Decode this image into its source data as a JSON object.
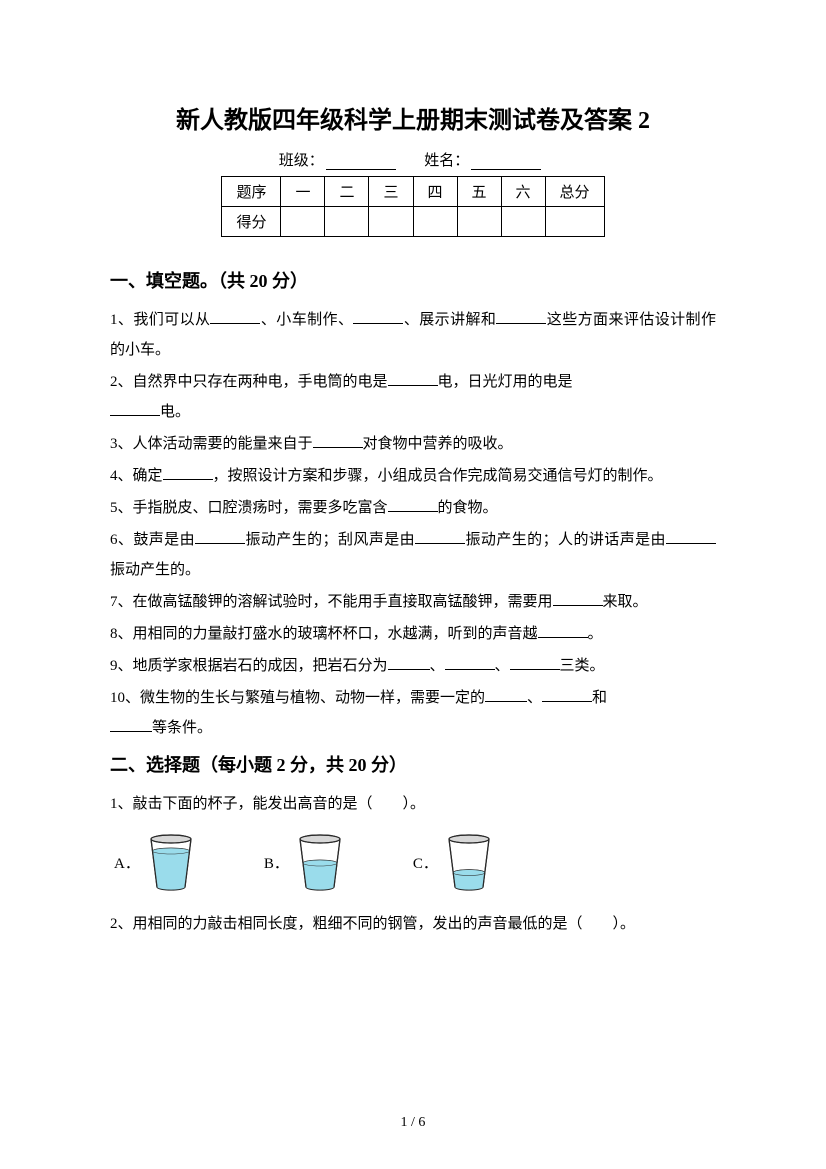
{
  "title": "新人教版四年级科学上册期末测试卷及答案 2",
  "meta": {
    "class_label": "班级：",
    "name_label": "姓名："
  },
  "score_table": {
    "row_labels": [
      "题序",
      "得分"
    ],
    "columns": [
      "一",
      "二",
      "三",
      "四",
      "五",
      "六",
      "总分"
    ]
  },
  "sections": {
    "s1": {
      "heading": "一、填空题。（共 20 分）",
      "items": {
        "q1_a": "1、我们可以从",
        "q1_b": "、小车制作、",
        "q1_c": "、展示讲解和",
        "q1_d": "这些方面来评估设计制作的小车。",
        "q2_a": "2、自然界中只存在两种电，手电筒的电是",
        "q2_b": "电，日光灯用的电是",
        "q2_c": "电。",
        "q3_a": "3、人体活动需要的能量来自于",
        "q3_b": "对食物中营养的吸收。",
        "q4_a": "4、确定",
        "q4_b": "，按照设计方案和步骤，小组成员合作完成简易交通信号灯的制作。",
        "q5_a": "5、手指脱皮、口腔溃疡时，需要多吃富含",
        "q5_b": "的食物。",
        "q6_a": "6、鼓声是由",
        "q6_b": "振动产生的；刮风声是由",
        "q6_c": "振动产生的；人的讲话声是由",
        "q6_d": "振动产生的。",
        "q7_a": "7、在做高锰酸钾的溶解试验时，不能用手直接取高锰酸钾，需要用",
        "q7_b": "来取。",
        "q8_a": "8、用相同的力量敲打盛水的玻璃杯杯口，水越满，听到的声音越",
        "q8_b": "。",
        "q9_a": "9、地质学家根据岩石的成因，把岩石分为",
        "q9_b": "、",
        "q9_c": "、",
        "q9_d": "三类。",
        "q10_a": "10、微生物的生长与繁殖与植物、动物一样，需要一定的",
        "q10_b": "、",
        "q10_c": "和",
        "q10_d": "等条件。"
      }
    },
    "s2": {
      "heading": "二、选择题（每小题 2 分，共 20 分）",
      "items": {
        "q1": "1、敲击下面的杯子，能发出高音的是（　　）。",
        "q1_options": [
          "A．",
          "B．",
          "C．"
        ],
        "q1_cup_colors": {
          "water": "#9adceb",
          "outline": "#2a2a2a",
          "rim": "#d8d8d8"
        },
        "q1_water_levels": [
          0.75,
          0.5,
          0.3
        ],
        "q2": "2、用相同的力敲击相同长度，粗细不同的钢管，发出的声音最低的是（　　）。"
      }
    }
  },
  "footer": "1 / 6"
}
